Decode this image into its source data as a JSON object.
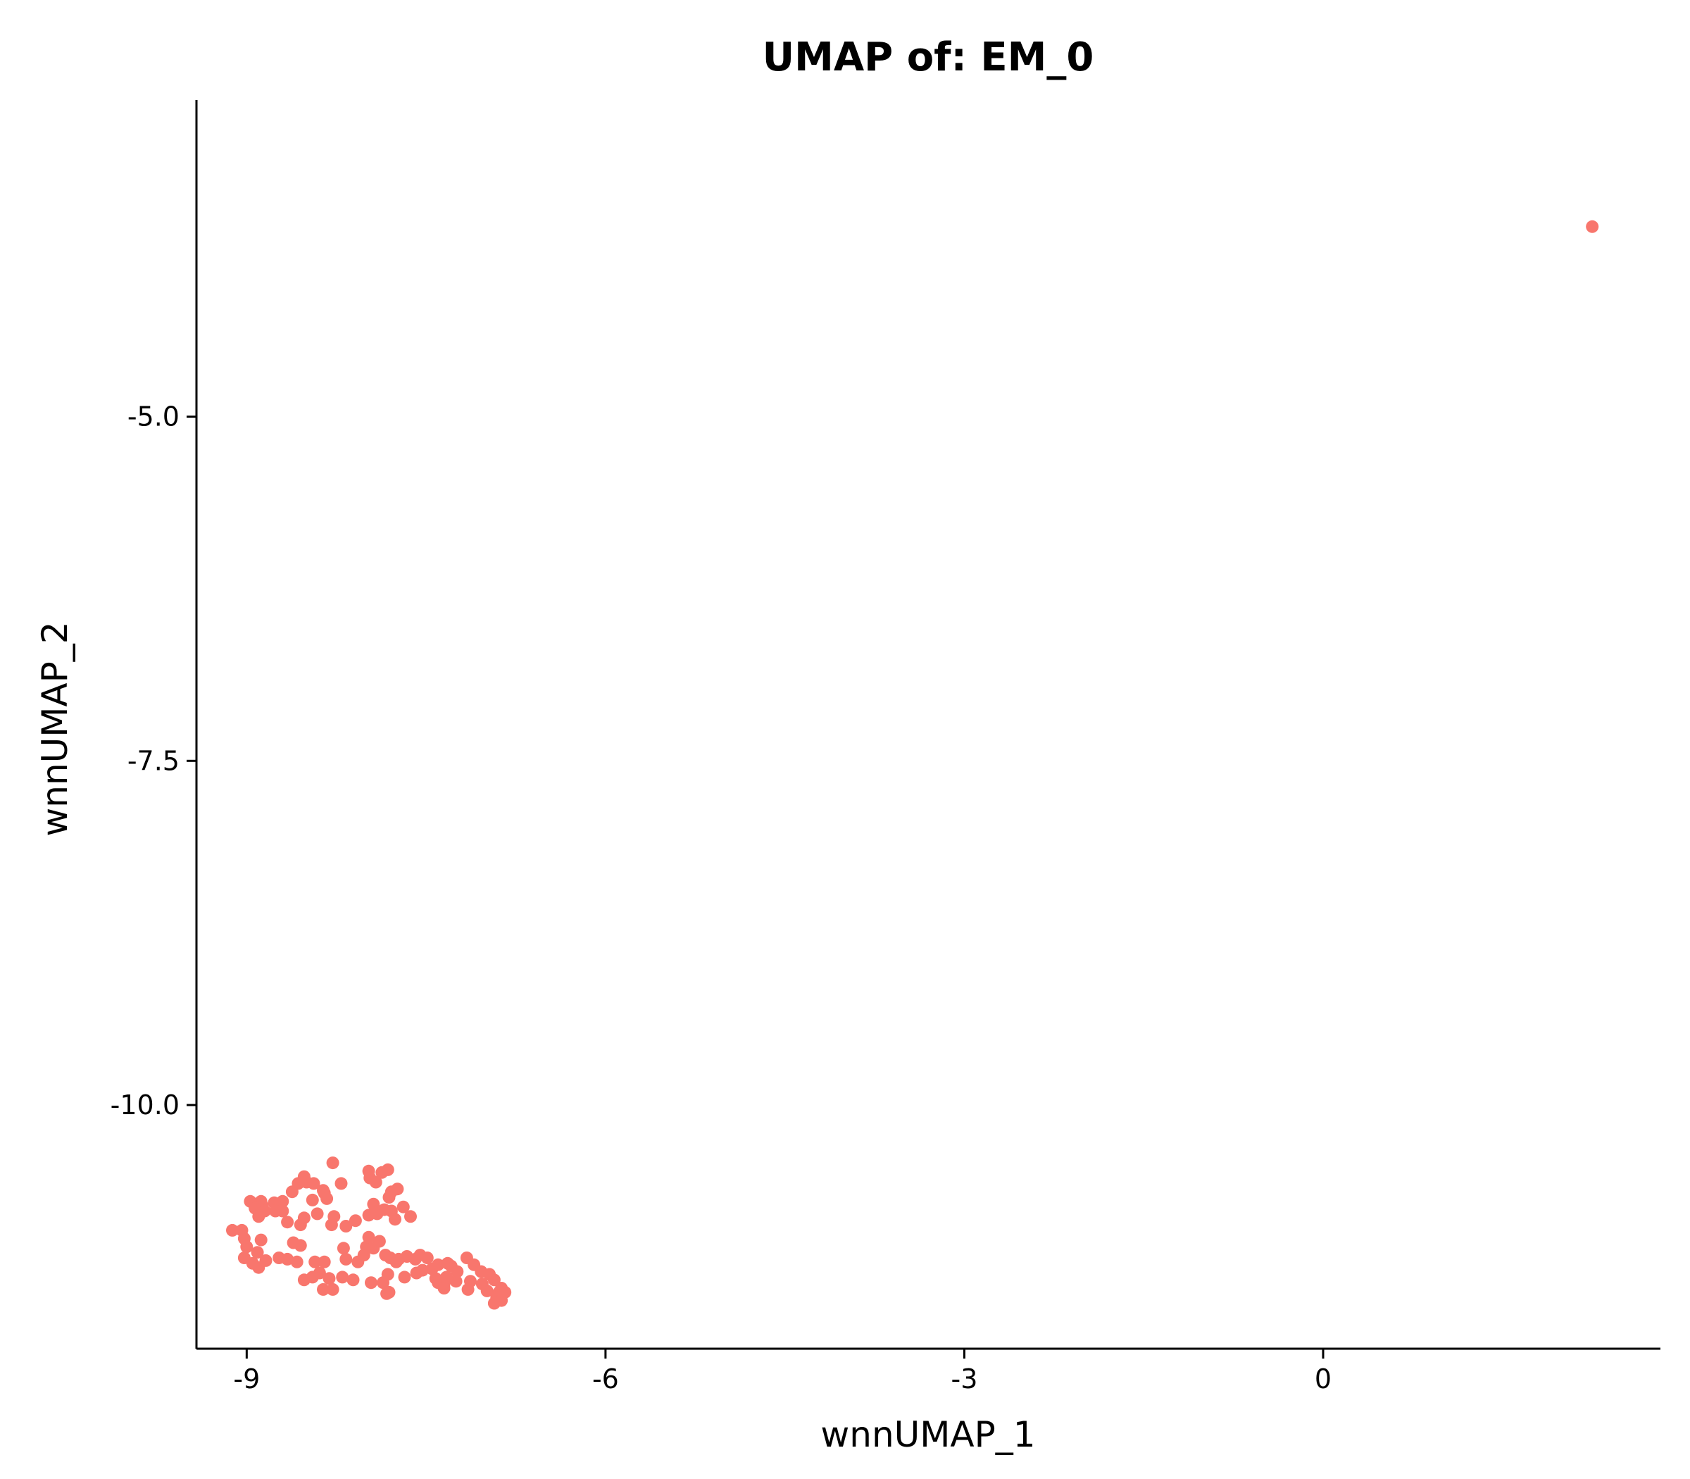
{
  "chart_data": {
    "type": "scatter",
    "title": "UMAP of: EM_0",
    "xlabel": "wnnUMAP_1",
    "ylabel": "wnnUMAP_2",
    "xlim": [
      -9.42,
      2.82
    ],
    "ylim": [
      -11.77,
      -2.7
    ],
    "xticks": [
      -9,
      -6,
      -3,
      0
    ],
    "xtick_labels": [
      "-9",
      "-6",
      "-3",
      "0"
    ],
    "yticks": [
      -5.0,
      -7.5,
      -10.0
    ],
    "ytick_labels": [
      "-5.0",
      "-7.5",
      "-10.0"
    ],
    "grid": false,
    "legend": "none",
    "point_color": "#F8766D",
    "series": [
      {
        "points": [
          [
            2.25,
            -3.62
          ],
          [
            -8.28,
            -10.42
          ],
          [
            -8.52,
            -10.52
          ],
          [
            -8.5,
            -10.56
          ],
          [
            -8.57,
            -10.57
          ],
          [
            -8.44,
            -10.57
          ],
          [
            -8.62,
            -10.63
          ],
          [
            -8.36,
            -10.62
          ],
          [
            -8.35,
            -10.64
          ],
          [
            -8.21,
            -10.57
          ],
          [
            -8.33,
            -10.68
          ],
          [
            -8.45,
            -10.69
          ],
          [
            -8.7,
            -10.7
          ],
          [
            -8.77,
            -10.71
          ],
          [
            -8.76,
            -10.77
          ],
          [
            -8.88,
            -10.7
          ],
          [
            -8.87,
            -10.73
          ],
          [
            -8.97,
            -10.7
          ],
          [
            -8.93,
            -10.75
          ],
          [
            -8.85,
            -10.77
          ],
          [
            -8.9,
            -10.81
          ],
          [
            -8.7,
            -10.77
          ],
          [
            -8.66,
            -10.85
          ],
          [
            -8.55,
            -10.87
          ],
          [
            -8.52,
            -10.82
          ],
          [
            -8.41,
            -10.79
          ],
          [
            -8.29,
            -10.87
          ],
          [
            -8.27,
            -10.81
          ],
          [
            -8.17,
            -10.88
          ],
          [
            -8.09,
            -10.84
          ],
          [
            -7.98,
            -10.8
          ],
          [
            -7.94,
            -10.72
          ],
          [
            -7.91,
            -10.79
          ],
          [
            -7.85,
            -10.76
          ],
          [
            -7.79,
            -10.77
          ],
          [
            -7.76,
            -10.83
          ],
          [
            -7.81,
            -10.67
          ],
          [
            -7.79,
            -10.63
          ],
          [
            -7.92,
            -10.56
          ],
          [
            -7.87,
            -10.49
          ],
          [
            -7.82,
            -10.47
          ],
          [
            -7.98,
            -10.48
          ],
          [
            -7.97,
            -10.53
          ],
          [
            -7.74,
            -10.61
          ],
          [
            -7.69,
            -10.74
          ],
          [
            -7.63,
            -10.81
          ],
          [
            -9.12,
            -10.91
          ],
          [
            -9.04,
            -10.91
          ],
          [
            -9.02,
            -10.97
          ],
          [
            -9.0,
            -11.03
          ],
          [
            -9.02,
            -11.11
          ],
          [
            -8.95,
            -11.15
          ],
          [
            -8.9,
            -11.18
          ],
          [
            -8.88,
            -10.98
          ],
          [
            -8.91,
            -11.07
          ],
          [
            -8.84,
            -11.13
          ],
          [
            -8.73,
            -11.11
          ],
          [
            -8.66,
            -11.12
          ],
          [
            -8.58,
            -11.14
          ],
          [
            -8.55,
            -11.02
          ],
          [
            -8.43,
            -11.14
          ],
          [
            -8.35,
            -11.14
          ],
          [
            -8.17,
            -11.12
          ],
          [
            -8.07,
            -11.14
          ],
          [
            -8.02,
            -11.09
          ],
          [
            -8.0,
            -11.03
          ],
          [
            -7.98,
            -10.96
          ],
          [
            -7.94,
            -11.04
          ],
          [
            -7.89,
            -10.99
          ],
          [
            -7.84,
            -11.09
          ],
          [
            -7.8,
            -11.11
          ],
          [
            -7.75,
            -11.14
          ],
          [
            -7.73,
            -11.12
          ],
          [
            -7.66,
            -11.1
          ],
          [
            -7.59,
            -11.12
          ],
          [
            -7.55,
            -11.09
          ],
          [
            -7.49,
            -11.11
          ],
          [
            -7.53,
            -11.2
          ],
          [
            -7.45,
            -11.19
          ],
          [
            -7.4,
            -11.16
          ],
          [
            -7.32,
            -11.15
          ],
          [
            -7.29,
            -11.17
          ],
          [
            -7.24,
            -11.21
          ],
          [
            -7.16,
            -11.11
          ],
          [
            -7.1,
            -11.16
          ],
          [
            -7.04,
            -11.21
          ],
          [
            -6.97,
            -11.23
          ],
          [
            -6.93,
            -11.27
          ],
          [
            -8.52,
            -11.27
          ],
          [
            -8.45,
            -11.25
          ],
          [
            -8.39,
            -11.22
          ],
          [
            -8.31,
            -11.26
          ],
          [
            -8.2,
            -11.25
          ],
          [
            -8.11,
            -11.27
          ],
          [
            -7.96,
            -11.29
          ],
          [
            -7.86,
            -11.29
          ],
          [
            -7.82,
            -11.23
          ],
          [
            -7.68,
            -11.25
          ],
          [
            -7.58,
            -11.22
          ],
          [
            -7.42,
            -11.26
          ],
          [
            -7.4,
            -11.29
          ],
          [
            -7.35,
            -11.3
          ],
          [
            -7.33,
            -11.25
          ],
          [
            -7.25,
            -11.28
          ],
          [
            -7.13,
            -11.28
          ],
          [
            -7.03,
            -11.3
          ],
          [
            -6.99,
            -11.35
          ],
          [
            -6.89,
            -11.36
          ],
          [
            -6.84,
            -11.36
          ],
          [
            -6.87,
            -11.33
          ],
          [
            -6.91,
            -11.4
          ],
          [
            -6.87,
            -11.42
          ],
          [
            -6.93,
            -11.44
          ],
          [
            -8.28,
            -11.34
          ],
          [
            -8.36,
            -11.34
          ],
          [
            -7.83,
            -11.37
          ],
          [
            -7.81,
            -11.36
          ],
          [
            -7.15,
            -11.34
          ],
          [
            -7.35,
            -11.33
          ],
          [
            -8.61,
            -11.0
          ],
          [
            -8.19,
            -11.04
          ]
        ]
      }
    ]
  }
}
